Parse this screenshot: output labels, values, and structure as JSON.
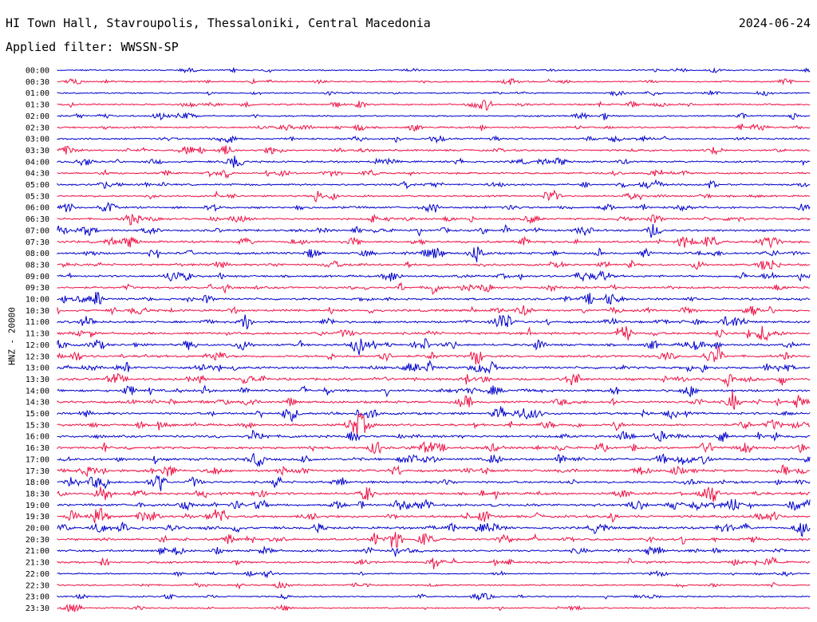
{
  "header": {
    "title": "HI Town Hall, Stavroupolis, Thessaloniki, Central Macedonia",
    "date": "2024-06-24",
    "filter": "Applied filter: WWSSN-SP"
  },
  "chart_data": {
    "type": "line",
    "ylabel": "HNZ - 20000",
    "colors": [
      "#0000cc",
      "#ee1144"
    ],
    "rows": [
      "00:00",
      "00:30",
      "01:00",
      "01:30",
      "02:00",
      "02:30",
      "03:00",
      "03:30",
      "04:00",
      "04:30",
      "05:00",
      "05:30",
      "06:00",
      "06:30",
      "07:00",
      "07:30",
      "08:00",
      "08:30",
      "09:00",
      "09:30",
      "10:00",
      "10:30",
      "11:00",
      "11:30",
      "12:00",
      "12:30",
      "13:00",
      "13:30",
      "14:00",
      "14:30",
      "15:00",
      "15:30",
      "16:00",
      "16:30",
      "17:00",
      "17:30",
      "18:00",
      "18:30",
      "19:00",
      "19:30",
      "20:00",
      "20:30",
      "21:00",
      "21:30",
      "22:00",
      "22:30",
      "23:00",
      "23:30"
    ],
    "activity": [
      0.3,
      0.35,
      0.3,
      0.45,
      0.4,
      0.5,
      0.5,
      0.55,
      0.55,
      0.55,
      0.55,
      0.5,
      0.6,
      0.6,
      0.65,
      0.7,
      0.7,
      0.65,
      0.65,
      0.65,
      0.65,
      0.7,
      0.7,
      0.75,
      0.75,
      0.75,
      0.8,
      0.8,
      0.8,
      0.8,
      0.75,
      0.75,
      0.75,
      0.75,
      0.8,
      0.8,
      0.75,
      0.8,
      0.85,
      0.8,
      0.8,
      0.75,
      0.7,
      0.6,
      0.3,
      0.35,
      0.3,
      0.3
    ]
  }
}
